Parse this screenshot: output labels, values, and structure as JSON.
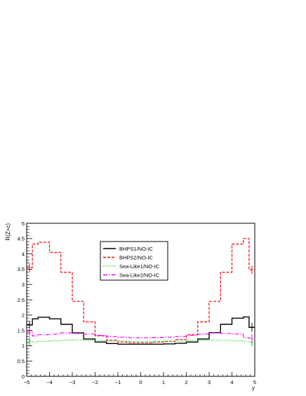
{
  "chart_data": {
    "type": "line",
    "xlabel": "y",
    "ylabel": "R(Z+c)",
    "xlim": [
      -5,
      5
    ],
    "ylim": [
      0,
      5
    ],
    "x_ticks": [
      "−5",
      "−4",
      "−3",
      "−2",
      "−1",
      "0",
      "1",
      "2",
      "3",
      "4",
      "5"
    ],
    "y_ticks": [
      "0",
      "0.5",
      "1",
      "1.5",
      "2",
      "2.5",
      "3",
      "3.5",
      "4",
      "4.5",
      "5"
    ],
    "legend_position": "center",
    "bin_edges": [
      -5,
      -4.75,
      -4.5,
      -4,
      -3.5,
      -3,
      -2.5,
      -2,
      -1.5,
      -1,
      -0.5,
      0,
      0.5,
      1,
      1.5,
      2,
      2.5,
      3,
      3.5,
      4,
      4.5,
      4.75,
      5
    ],
    "series": [
      {
        "name": "BHPS1/NO-IC",
        "color": "#000000",
        "dash": "solid",
        "values": [
          1.68,
          1.88,
          1.93,
          1.88,
          1.7,
          1.42,
          1.22,
          1.12,
          1.07,
          1.05,
          1.05,
          1.05,
          1.05,
          1.06,
          1.08,
          1.12,
          1.22,
          1.43,
          1.7,
          1.9,
          1.94,
          1.6
        ]
      },
      {
        "name": "BHPS2/NO-IC",
        "color": "#ff0000",
        "dash": "dashed",
        "values": [
          3.55,
          4.32,
          4.38,
          4.05,
          3.4,
          2.45,
          1.78,
          1.32,
          1.18,
          1.12,
          1.1,
          1.1,
          1.12,
          1.14,
          1.2,
          1.36,
          1.78,
          2.45,
          3.4,
          4.32,
          4.5,
          3.48
        ]
      },
      {
        "name": "Sea-Like1/NO-IC",
        "color": "#00cc00",
        "dash": "dotted",
        "values": [
          1.14,
          1.12,
          1.14,
          1.16,
          1.18,
          1.19,
          1.18,
          1.16,
          1.15,
          1.15,
          1.14,
          1.14,
          1.14,
          1.15,
          1.15,
          1.16,
          1.18,
          1.18,
          1.17,
          1.16,
          1.14,
          1.12
        ]
      },
      {
        "name": "Sea-Like2/NO-IC",
        "color": "#ff00ff",
        "dash": "dashdot",
        "values": [
          1.45,
          1.32,
          1.36,
          1.38,
          1.42,
          1.4,
          1.38,
          1.34,
          1.3,
          1.28,
          1.26,
          1.26,
          1.27,
          1.28,
          1.3,
          1.34,
          1.38,
          1.42,
          1.4,
          1.38,
          1.26,
          1.24
        ]
      }
    ]
  }
}
